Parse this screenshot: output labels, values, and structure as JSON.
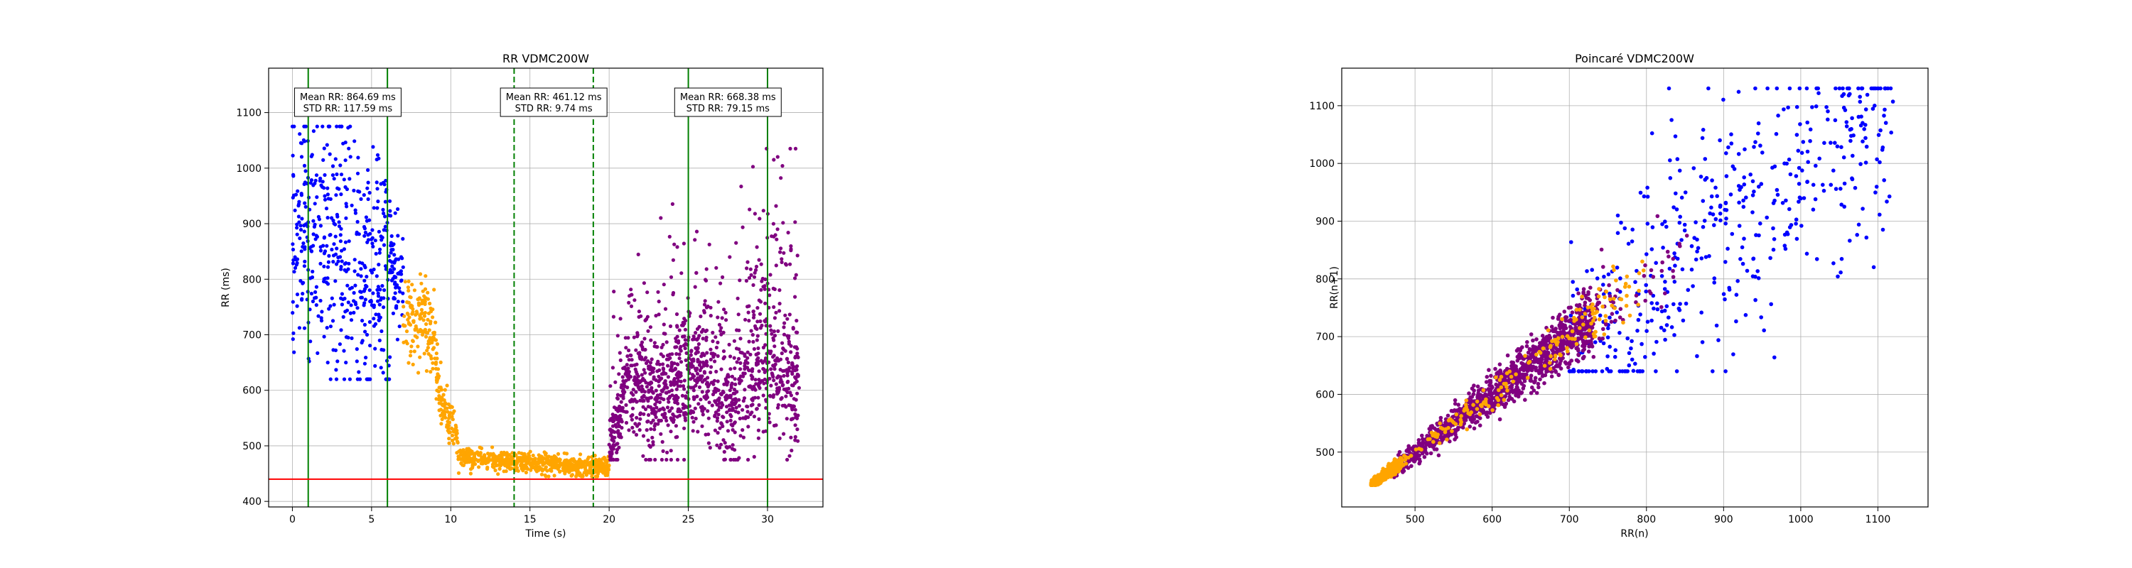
{
  "colors": {
    "blue": "#0000ff",
    "orange": "#ffa500",
    "purple": "#800080",
    "green_line": "#008000",
    "red_line": "#ff0000",
    "grid": "#b0b0b0"
  },
  "chart_data": [
    {
      "type": "scatter",
      "title": "RR VDMC200W",
      "xlabel": "Time (s)",
      "ylabel": "RR (ms)",
      "xlim": [
        -1.5,
        33.5
      ],
      "ylim": [
        390,
        1180
      ],
      "xticks": [
        0,
        5,
        10,
        15,
        20,
        25,
        30
      ],
      "yticks": [
        400,
        500,
        600,
        700,
        800,
        900,
        1000,
        1100
      ],
      "grid": true,
      "series": [
        {
          "color": "#0000ff",
          "x_range": [
            0,
            7
          ],
          "note_style": "high-variance ~620-1070 ms"
        },
        {
          "color": "#ffa500",
          "x_range": [
            7,
            20
          ],
          "note_style": "decreasing to ~460 ms"
        },
        {
          "color": "#800080",
          "x_range": [
            20,
            32
          ],
          "note_style": "~480-1030 ms"
        }
      ],
      "vlines": [
        {
          "x": 1,
          "style": "solid",
          "color": "#008000"
        },
        {
          "x": 6,
          "style": "solid",
          "color": "#008000"
        },
        {
          "x": 14,
          "style": "dashed",
          "color": "#008000"
        },
        {
          "x": 19,
          "style": "dashed",
          "color": "#008000"
        },
        {
          "x": 25,
          "style": "solid",
          "color": "#008000"
        },
        {
          "x": 30,
          "style": "solid",
          "color": "#008000"
        }
      ],
      "hline": {
        "y": 440,
        "color": "#ff0000"
      },
      "annotations": [
        {
          "x_center": 3.5,
          "line1": "Mean RR: 864.69 ms",
          "line2": "STD RR: 117.59 ms"
        },
        {
          "x_center": 16.5,
          "line1": "Mean RR: 461.12 ms",
          "line2": "STD RR: 9.74 ms"
        },
        {
          "x_center": 27.5,
          "line1": "Mean RR: 668.38 ms",
          "line2": "STD RR: 79.15 ms"
        }
      ]
    },
    {
      "type": "scatter",
      "title": "Poincaré VDMC200W",
      "xlabel": "RR(n)",
      "ylabel": "RR(n+1)",
      "xlim": [
        405,
        1165
      ],
      "ylim": [
        405,
        1165
      ],
      "xticks": [
        500,
        600,
        700,
        800,
        900,
        1000,
        1100
      ],
      "yticks": [
        500,
        600,
        700,
        800,
        900,
        1000,
        1100
      ],
      "grid": true,
      "series": [
        {
          "color": "#0000ff",
          "note_style": "cloud ~650-1130"
        },
        {
          "color": "#800080",
          "note_style": "diagonal ~460-880"
        },
        {
          "color": "#ffa500",
          "note_style": "low ~440-800"
        }
      ]
    }
  ]
}
